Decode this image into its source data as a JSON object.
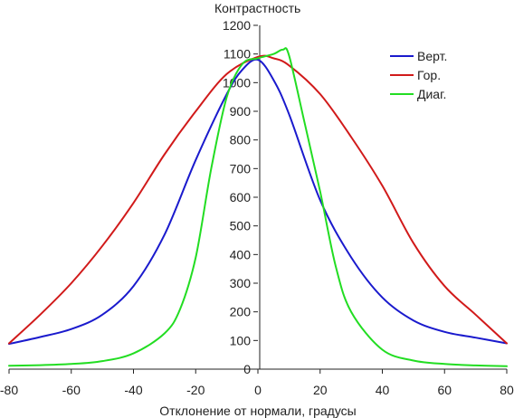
{
  "chart_data": {
    "type": "line",
    "title": "Контрастность",
    "xlabel": "Отклонение от нормали, градусы",
    "ylabel": "",
    "xlim": [
      -80,
      80
    ],
    "ylim": [
      0,
      1200
    ],
    "xticks": [
      -80,
      -60,
      -40,
      -20,
      0,
      20,
      40,
      60,
      80
    ],
    "yticks": [
      0,
      100,
      200,
      300,
      400,
      500,
      600,
      700,
      800,
      900,
      1000,
      1100,
      1200
    ],
    "grid": false,
    "legend_position": "top-right",
    "series": [
      {
        "name": "Верт.",
        "color": "#1a1acd",
        "x": [
          -80,
          -70,
          -60,
          -50,
          -40,
          -30,
          -20,
          -10,
          -5,
          0,
          5,
          10,
          20,
          30,
          40,
          50,
          60,
          70,
          80
        ],
        "y": [
          88,
          112,
          140,
          190,
          290,
          470,
          730,
          960,
          1045,
          1080,
          1010,
          890,
          590,
          390,
          250,
          170,
          130,
          110,
          90
        ]
      },
      {
        "name": "Гор.",
        "color": "#d11a1a",
        "x": [
          -80,
          -70,
          -60,
          -50,
          -40,
          -30,
          -20,
          -10,
          0,
          5,
          10,
          20,
          30,
          40,
          50,
          60,
          70,
          80
        ],
        "y": [
          90,
          190,
          300,
          430,
          580,
          750,
          900,
          1030,
          1090,
          1085,
          1060,
          960,
          810,
          640,
          440,
          290,
          190,
          90
        ]
      },
      {
        "name": "Диаг.",
        "color": "#22dd22",
        "x": [
          -80,
          -70,
          -60,
          -50,
          -40,
          -30,
          -25,
          -20,
          -15,
          -10,
          -5,
          0,
          5,
          8,
          10,
          15,
          20,
          25,
          30,
          40,
          50,
          60,
          70,
          80
        ],
        "y": [
          12,
          14,
          18,
          28,
          55,
          125,
          210,
          390,
          700,
          950,
          1065,
          1085,
          1100,
          1115,
          1095,
          860,
          620,
          360,
          200,
          68,
          30,
          18,
          13,
          10
        ]
      }
    ]
  }
}
